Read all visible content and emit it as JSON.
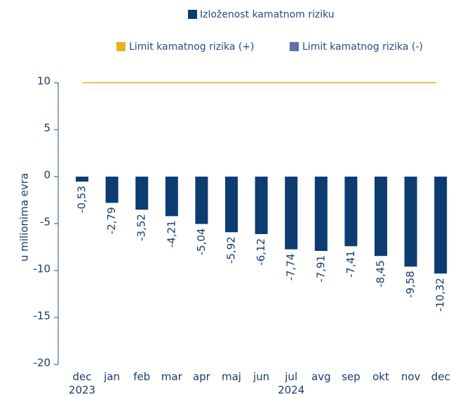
{
  "chart_data": {
    "type": "bar",
    "y_label": "u milionima evra",
    "categories": [
      "dec",
      "jan",
      "feb",
      "mar",
      "apr",
      "maj",
      "jun",
      "jul",
      "avg",
      "sep",
      "okt",
      "nov",
      "dec"
    ],
    "years": [
      "2023",
      null,
      null,
      null,
      null,
      null,
      null,
      "2024",
      null,
      null,
      null,
      null,
      null
    ],
    "series": [
      {
        "name": "Izloženost kamatnom riziku",
        "color": "#0b3c72",
        "values": [
          -0.53,
          -2.79,
          -3.52,
          -4.21,
          -5.04,
          -5.92,
          -6.12,
          -7.74,
          -7.91,
          -7.41,
          -8.45,
          -9.58,
          -10.32
        ],
        "value_labels": [
          "-0,53",
          "-2,79",
          "-3,52",
          "-4,21",
          "-5,04",
          "-5,92",
          "-6,12",
          "-7,74",
          "-7,91",
          "-7,41",
          "-8,45",
          "-9,58",
          "-10,32"
        ]
      }
    ],
    "limits": [
      {
        "name": "Limit kamatnog rizika (+)",
        "color": "#e8b21c",
        "value": 10
      },
      {
        "name": "Limit kamatnog rizika (-)",
        "color": "#5a72a6"
      }
    ],
    "ylim": [
      -20,
      10
    ],
    "yticks": [
      -20,
      -15,
      -10,
      -5,
      0,
      5,
      10
    ]
  }
}
